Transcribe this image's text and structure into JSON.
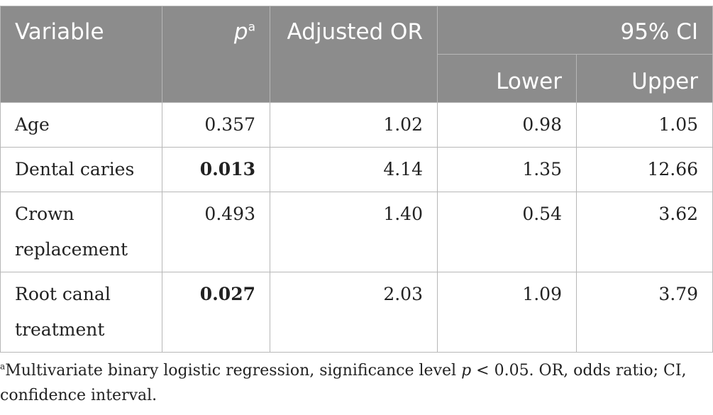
{
  "table": {
    "headers": {
      "variable": "Variable",
      "p_symbol": "p",
      "p_superscript": "a",
      "adjusted_or": "Adjusted OR",
      "ci": "95% CI",
      "lower": "Lower",
      "upper": "Upper"
    },
    "rows": [
      {
        "variable": "Age",
        "p": "0.357",
        "or": "1.02",
        "lower": "0.98",
        "upper": "1.05"
      },
      {
        "variable": "Dental caries",
        "p": "0.013",
        "or": "4.14",
        "lower": "1.35",
        "upper": "12.66"
      },
      {
        "variable": "Crown replacement",
        "p": "0.493",
        "or": "1.40",
        "lower": "0.54",
        "upper": "3.62"
      },
      {
        "variable": "Root canal treatment",
        "p": "0.027",
        "or": "2.03",
        "lower": "1.09",
        "upper": "3.79"
      }
    ]
  },
  "footnote": {
    "marker": "a",
    "text_before": "Multivariate binary logistic regression, significance level ",
    "p_symbol": "p",
    "text_after": " < 0.05. OR, odds ratio; CI, confidence interval."
  }
}
